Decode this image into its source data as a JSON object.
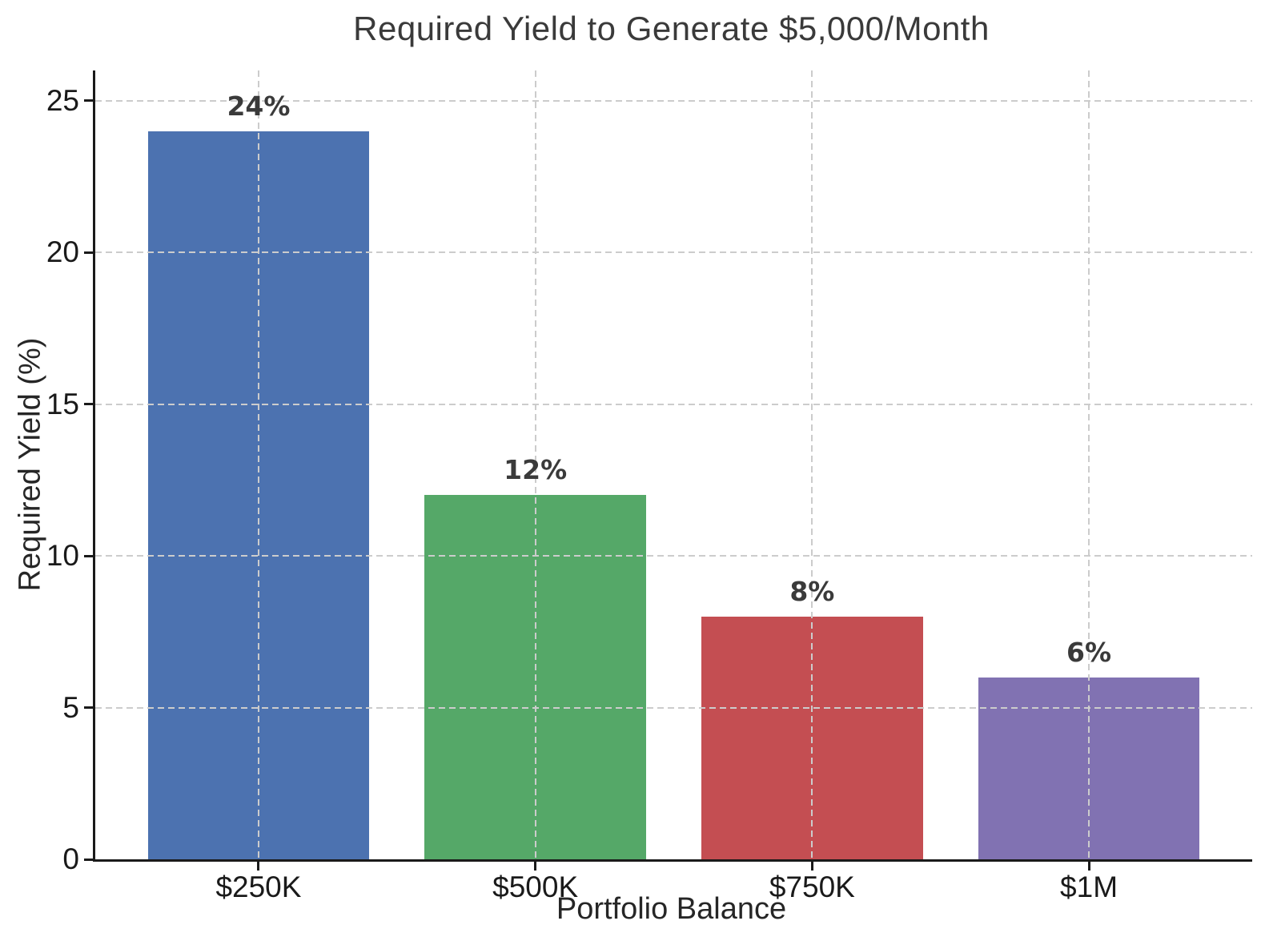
{
  "chart_data": {
    "type": "bar",
    "title": "Required Yield to Generate $5,000/Month",
    "xlabel": "Portfolio Balance",
    "ylabel": "Required Yield (%)",
    "categories": [
      "$250K",
      "$500K",
      "$750K",
      "$1M"
    ],
    "values": [
      24,
      12,
      8,
      6
    ],
    "bar_labels": [
      "24%",
      "12%",
      "8%",
      "6%"
    ],
    "bar_colors": [
      "#4C72B0",
      "#55A868",
      "#C44E52",
      "#8172B2"
    ],
    "ylim": [
      0,
      26
    ],
    "yticks": [
      0,
      5,
      10,
      15,
      20,
      25
    ],
    "grid": true,
    "grid_style": "dashed",
    "grid_orientation": "horizontal ticks and vertical lines at bar centers",
    "legend": "none"
  },
  "colors": {
    "background": "#FFFFFF",
    "grid": "#CCCCCC",
    "spine": "#1A1A1A",
    "title_text": "#3A3A3A",
    "tick_text": "#1A1A1A",
    "value_label_text": "#3A3A3A"
  }
}
